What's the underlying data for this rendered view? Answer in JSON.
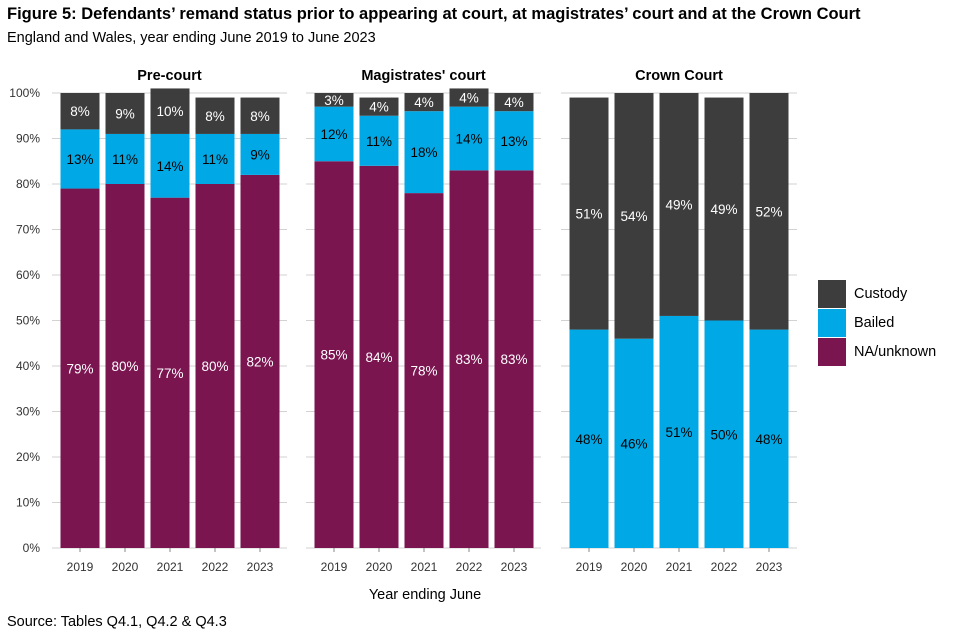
{
  "title": "Figure 5: Defendants’ remand status prior to appearing at court, at magistrates’ court and at the Crown Court",
  "subtitle": "England and Wales, year ending June 2019 to June 2023",
  "source": "Source: Tables Q4.1, Q4.2 & Q4.3",
  "colors": {
    "Custody": "#3d3d3d",
    "Bailed": "#00a9e6",
    "NA/unknown": "#7a1550",
    "grid": "#d2d2d2"
  },
  "legend": {
    "placement": "right",
    "items": [
      {
        "label": "Custody",
        "color": "#3d3d3d"
      },
      {
        "label": "Bailed",
        "color": "#00a9e6"
      },
      {
        "label": "NA/unknown",
        "color": "#7a1550"
      }
    ]
  },
  "chart_data": {
    "type": "bar",
    "stacked": true,
    "xlabel": "Year ending June",
    "ylabel": "",
    "ylim": [
      0,
      100
    ],
    "yticks": [
      "0%",
      "10%",
      "20%",
      "30%",
      "40%",
      "50%",
      "60%",
      "70%",
      "80%",
      "90%",
      "100%"
    ],
    "grid": true,
    "categories": [
      "2019",
      "2020",
      "2021",
      "2022",
      "2023"
    ],
    "panels": [
      {
        "title": "Pre-court",
        "series": [
          {
            "name": "NA/unknown",
            "values": [
              79,
              80,
              77,
              80,
              82
            ],
            "labels": [
              "79%",
              "80%",
              "77%",
              "80%",
              "82%"
            ]
          },
          {
            "name": "Bailed",
            "values": [
              13,
              11,
              14,
              11,
              9
            ],
            "labels": [
              "13%",
              "11%",
              "14%",
              "11%",
              "9%"
            ]
          },
          {
            "name": "Custody",
            "values": [
              8,
              9,
              10,
              8,
              8
            ],
            "labels": [
              "8%",
              "9%",
              "10%",
              "8%",
              "8%"
            ]
          }
        ]
      },
      {
        "title": "Magistrates' court",
        "series": [
          {
            "name": "NA/unknown",
            "values": [
              85,
              84,
              78,
              83,
              83
            ],
            "labels": [
              "85%",
              "84%",
              "78%",
              "83%",
              "83%"
            ]
          },
          {
            "name": "Bailed",
            "values": [
              12,
              11,
              18,
              14,
              13
            ],
            "labels": [
              "12%",
              "11%",
              "18%",
              "14%",
              "13%"
            ]
          },
          {
            "name": "Custody",
            "values": [
              3,
              4,
              4,
              4,
              4
            ],
            "labels": [
              "3%",
              "4%",
              "4%",
              "4%",
              "4%"
            ]
          }
        ]
      },
      {
        "title": "Crown Court",
        "series": [
          {
            "name": "NA/unknown",
            "values": [
              0,
              0,
              0,
              0,
              0
            ],
            "labels": [
              "",
              "",
              "",
              "",
              ""
            ]
          },
          {
            "name": "Bailed",
            "values": [
              48,
              46,
              51,
              50,
              48
            ],
            "labels": [
              "48%",
              "46%",
              "51%",
              "50%",
              "48%"
            ]
          },
          {
            "name": "Custody",
            "values": [
              51,
              54,
              49,
              49,
              52
            ],
            "labels": [
              "51%",
              "54%",
              "49%",
              "49%",
              "52%"
            ]
          }
        ]
      }
    ]
  }
}
